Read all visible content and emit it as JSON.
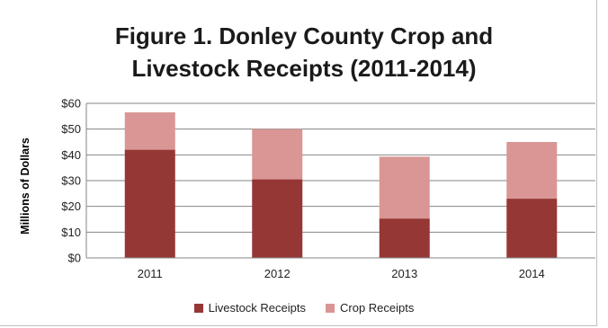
{
  "chart_data": {
    "type": "bar",
    "stacked": true,
    "title_lines": [
      "Figure 1. Donley County Crop and",
      "Livestock Receipts (2011-2014)"
    ],
    "xlabel": "",
    "ylabel": "Millions of Dollars",
    "categories": [
      "2011",
      "2012",
      "2013",
      "2014"
    ],
    "series": [
      {
        "name": "Livestock Receipts",
        "color": "#953735",
        "values": [
          42,
          30.5,
          15.3,
          23
        ]
      },
      {
        "name": "Crop Receipts",
        "color": "#d99694",
        "values": [
          14.5,
          19.5,
          24,
          22
        ]
      }
    ],
    "ylim": [
      0,
      60
    ],
    "yticks": [
      0,
      10,
      20,
      30,
      40,
      50,
      60
    ],
    "ytick_labels": [
      "$0",
      "$10",
      "$20",
      "$30",
      "$40",
      "$50",
      "$60"
    ],
    "grid": true,
    "legend_position": "bottom"
  }
}
